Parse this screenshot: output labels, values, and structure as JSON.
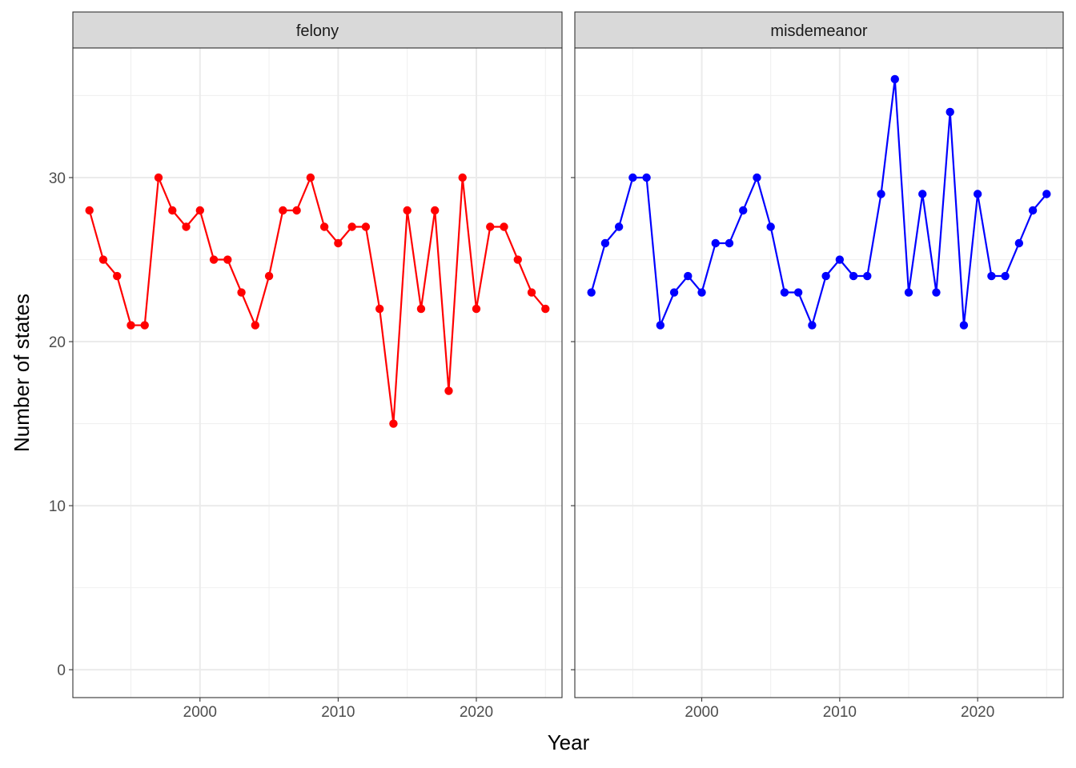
{
  "chart_data": {
    "type": "line",
    "layout": "faceted",
    "xlabel": "Year",
    "ylabel": "Number of states",
    "x_ticks": [
      2000,
      2010,
      2020
    ],
    "y_ticks": [
      0,
      10,
      20,
      30
    ],
    "xlim": [
      1990.8,
      2026.2
    ],
    "ylim": [
      -1.7,
      37.9
    ],
    "grid": true,
    "legend": "none",
    "x": [
      1992,
      1993,
      1994,
      1995,
      1996,
      1997,
      1998,
      1999,
      2000,
      2001,
      2002,
      2003,
      2004,
      2005,
      2006,
      2007,
      2008,
      2009,
      2010,
      2011,
      2012,
      2013,
      2014,
      2015,
      2016,
      2017,
      2018,
      2019,
      2020,
      2021,
      2022,
      2023,
      2024,
      2025
    ],
    "panels": [
      {
        "strip": "felony",
        "color": "#ff0000",
        "values": [
          28,
          25,
          24,
          21,
          21,
          30,
          28,
          27,
          28,
          25,
          25,
          23,
          21,
          24,
          28,
          28,
          30,
          27,
          26,
          27,
          27,
          22,
          15,
          28,
          22,
          28,
          17,
          30,
          22,
          27,
          27,
          25,
          23,
          22
        ]
      },
      {
        "strip": "misdemeanor",
        "color": "#0000ff",
        "values": [
          23,
          26,
          27,
          30,
          30,
          21,
          23,
          24,
          23,
          26,
          26,
          28,
          30,
          27,
          23,
          23,
          21,
          24,
          25,
          24,
          24,
          29,
          36,
          23,
          29,
          23,
          34,
          21,
          29,
          24,
          24,
          26,
          28,
          29
        ]
      }
    ]
  }
}
